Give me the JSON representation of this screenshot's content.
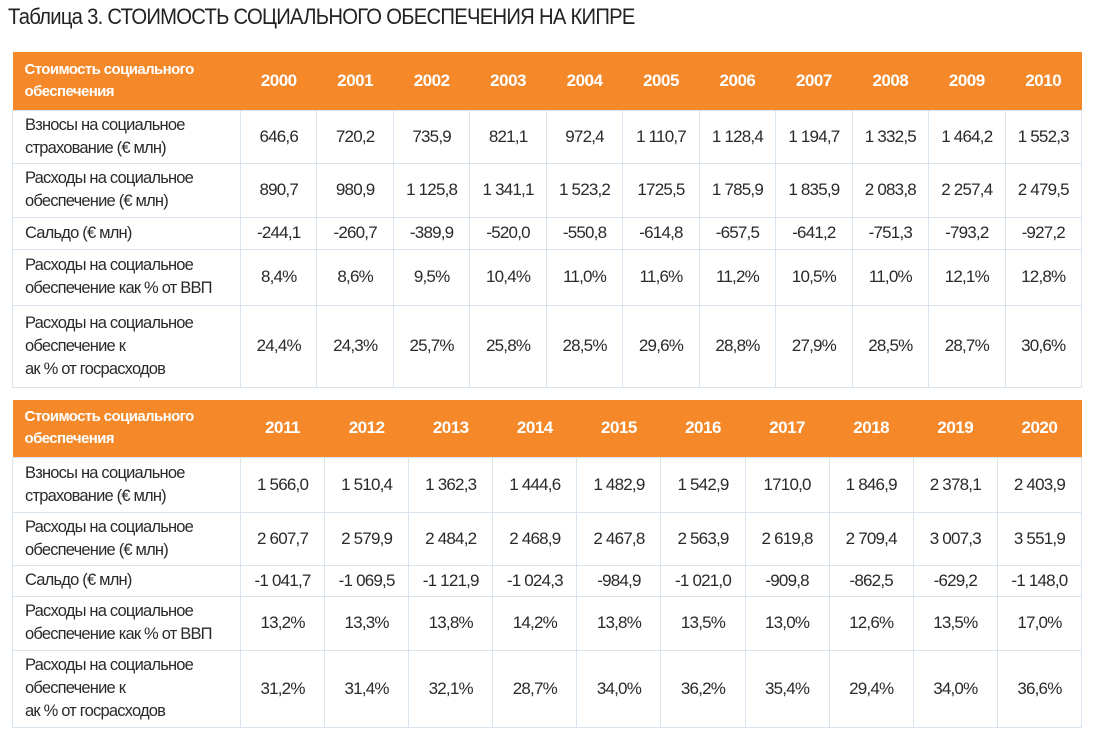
{
  "title": "Таблица 3. СТОИМОСТЬ СОЦИАЛЬНОГО ОБЕСПЕЧЕНИЯ НА КИПРЕ",
  "colors": {
    "header_bg": "#f5892a",
    "grid": "#d9e4ee"
  },
  "tables": [
    {
      "header_label": "Стоимость социального обеспечения",
      "years": [
        "2000",
        "2001",
        "2002",
        "2003",
        "2004",
        "2005",
        "2006",
        "2007",
        "2008",
        "2009",
        "2010"
      ],
      "rows": [
        {
          "label": "Взносы на социальное страхование (€ млн)",
          "values": [
            "646,6",
            "720,2",
            "735,9",
            "821,1",
            "972,4",
            "1 110,7",
            "1 128,4",
            "1 194,7",
            "1 332,5",
            "1 464,2",
            "1 552,3"
          ]
        },
        {
          "label": "Расходы на социальное обеспечение (€ млн)",
          "values": [
            "890,7",
            "980,9",
            "1 125,8",
            "1 341,1",
            "1 523,2",
            "1725,5",
            "1 785,9",
            "1 835,9",
            "2 083,8",
            "2 257,4",
            "2 479,5"
          ]
        },
        {
          "label": "Сальдо (€ млн)",
          "values": [
            "-244,1",
            "-260,7",
            "-389,9",
            "-520,0",
            "-550,8",
            "-614,8",
            "-657,5",
            "-641,2",
            "-751,3",
            "-793,2",
            "-927,2"
          ]
        },
        {
          "label": "Расходы на социальное обеспечение как % от ВВП",
          "values": [
            "8,4%",
            "8,6%",
            "9,5%",
            "10,4%",
            "11,0%",
            "11,6%",
            "11,2%",
            "10,5%",
            "11,0%",
            "12,1%",
            "12,8%"
          ]
        },
        {
          "label": "Расходы на социальное обеспечение как % от госрасходов",
          "values": [
            "24,4%",
            "24,3%",
            "25,7%",
            "25,8%",
            "28,5%",
            "29,6%",
            "28,8%",
            "27,9%",
            "28,5%",
            "28,7%",
            "30,6%"
          ]
        }
      ]
    },
    {
      "header_label": "Стоимость социального обеспечения",
      "years": [
        "2011",
        "2012",
        "2013",
        "2014",
        "2015",
        "2016",
        "2017",
        "2018",
        "2019",
        "2020"
      ],
      "rows": [
        {
          "label": "Взносы на социальное страхование (€ млн)",
          "values": [
            "1 566,0",
            "1 510,4",
            "1 362,3",
            "1 444,6",
            "1 482,9",
            "1 542,9",
            "1710,0",
            "1 846,9",
            "2 378,1",
            "2 403,9"
          ]
        },
        {
          "label": "Расходы на социальное обеспечение (€ млн)",
          "values": [
            "2 607,7",
            "2 579,9",
            "2 484,2",
            "2 468,9",
            "2 467,8",
            "2 563,9",
            "2 619,8",
            "2 709,4",
            "3 007,3",
            "3 551,9"
          ]
        },
        {
          "label": "Сальдо (€ млн)",
          "values": [
            "-1 041,7",
            "-1 069,5",
            "-1 121,9",
            "-1 024,3",
            "-984,9",
            "-1 021,0",
            "-909,8",
            "-862,5",
            "-629,2",
            "-1 148,0"
          ]
        },
        {
          "label": "Расходы на социальное обеспечение как % от ВВП",
          "values": [
            "13,2%",
            "13,3%",
            "13,8%",
            "14,2%",
            "13,8%",
            "13,5%",
            "13,0%",
            "12,6%",
            "13,5%",
            "17,0%"
          ]
        },
        {
          "label": "Расходы на социальное обеспечение как % от госрасходов",
          "values": [
            "31,2%",
            "31,4%",
            "32,1%",
            "28,7%",
            "34,0%",
            "36,2%",
            "35,4%",
            "29,4%",
            "34,0%",
            "36,6%"
          ]
        }
      ]
    }
  ]
}
